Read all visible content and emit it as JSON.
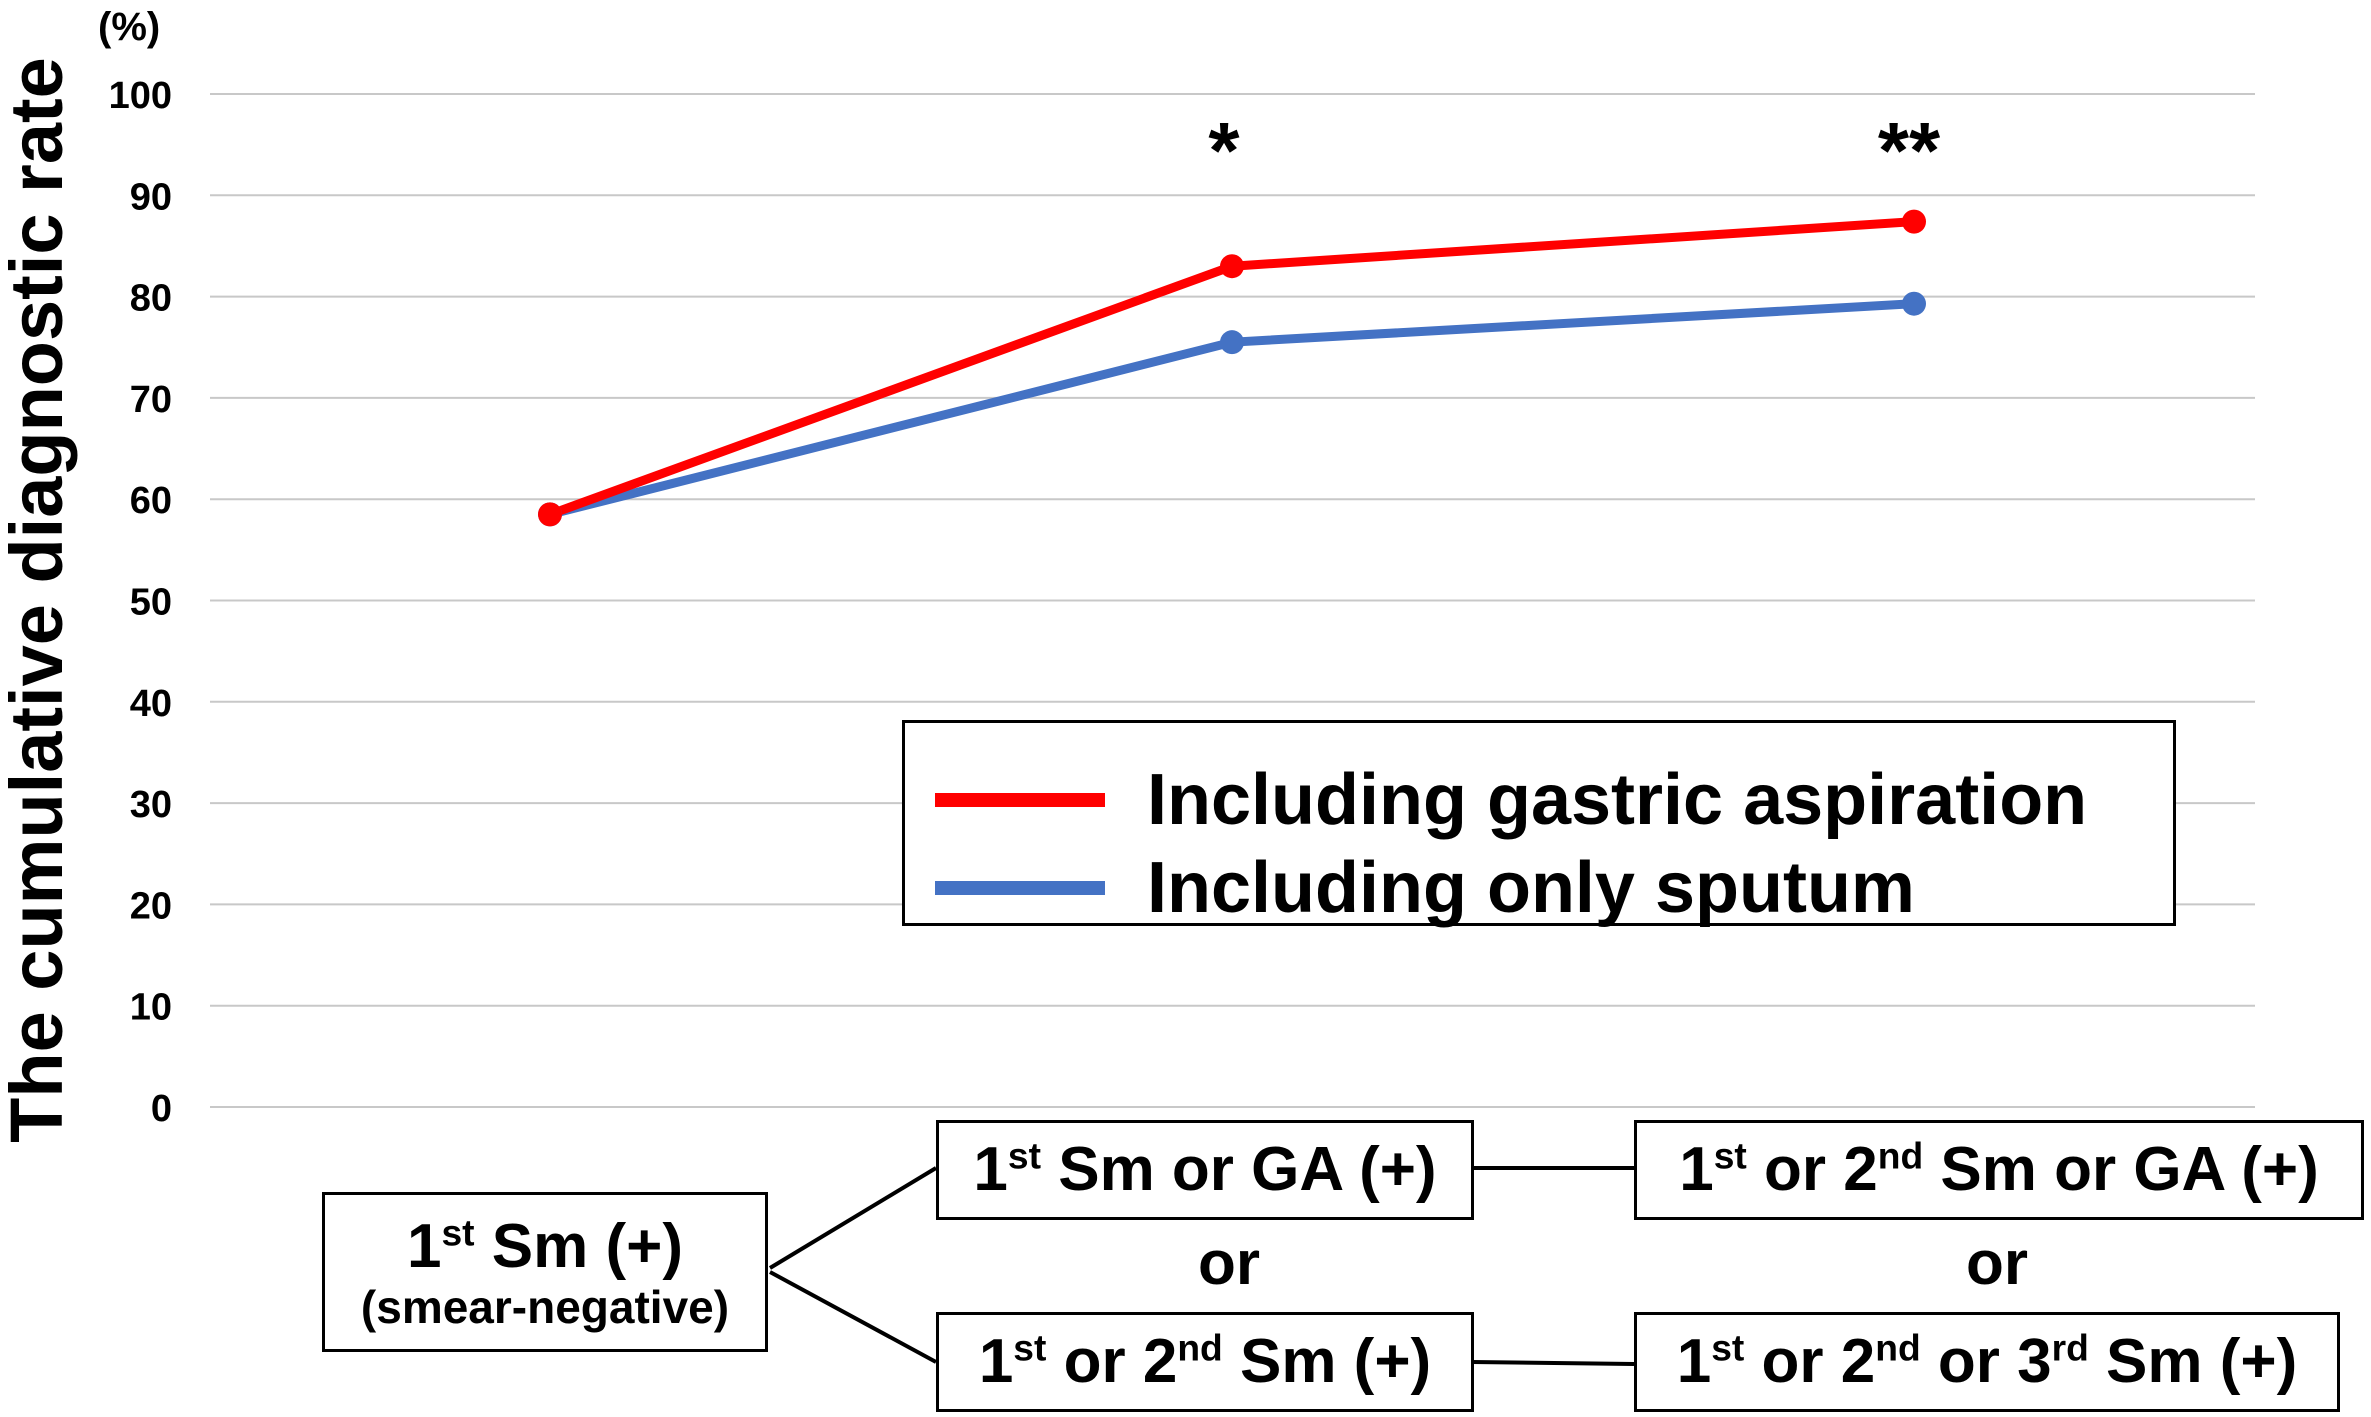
{
  "chart_data": {
    "type": "line",
    "ylabel": "The cumulative diagnostic rate",
    "yunit": "(%)",
    "ylim": [
      0,
      100
    ],
    "yticks": [
      0,
      10,
      20,
      30,
      40,
      50,
      60,
      70,
      80,
      90,
      100
    ],
    "grid": true,
    "categories": [
      "1st Sm (+)",
      "1st Sm or GA (+) / 1st or 2nd Sm (+)",
      "1st or 2nd Sm or GA (+) / 1st or 2nd or 3rd Sm (+)"
    ],
    "series": [
      {
        "name": "Including gastric aspiration",
        "color": "#ff0000",
        "values": [
          58.5,
          83.0,
          87.4
        ]
      },
      {
        "name": "Including only sputum",
        "color": "#4472c4",
        "values": [
          58.5,
          75.5,
          79.3
        ]
      }
    ],
    "annotations": [
      "",
      "*",
      "**"
    ],
    "legend_position": "lower-right"
  },
  "flow": {
    "start": {
      "main_pre": "1",
      "main_sup": "st",
      "main_post": " Sm (+)",
      "sub": "(smear-negative)"
    },
    "mid_top": {
      "p1": "1",
      "s1": "st",
      "p2": " Sm or GA (+)"
    },
    "mid_bottom": {
      "p1": "1",
      "s1": "st",
      "p2": " or 2",
      "s2": "nd",
      "p3": " Sm (+)"
    },
    "end_top": {
      "p1": "1",
      "s1": "st",
      "p2": " or 2",
      "s2": "nd",
      "p3": " Sm or GA (+)"
    },
    "end_bottom": {
      "p1": "1",
      "s1": "st",
      "p2": " or 2",
      "s2": "nd",
      "p3": " or 3",
      "s3": "rd",
      "p4": " Sm (+)"
    },
    "or_label": "or"
  }
}
